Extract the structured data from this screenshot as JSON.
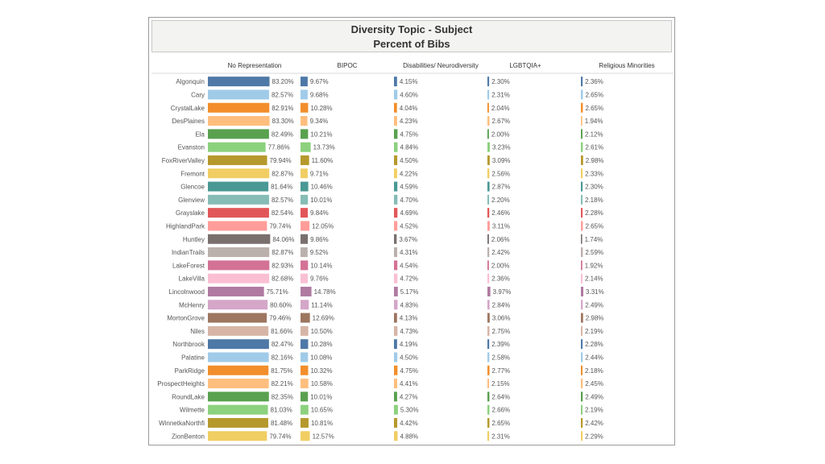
{
  "chart_data": {
    "type": "bar",
    "title": "Diversity Topic - Subject",
    "subtitle": "Percent of Bibs",
    "categories": [
      "Algonquin",
      "Cary",
      "CrystalLake",
      "DesPlaines",
      "Ela",
      "Evanston",
      "FoxRiverValley",
      "Fremont",
      "Glencoe",
      "Glenview",
      "Grayslake",
      "HighlandPark",
      "Huntley",
      "IndianTrails",
      "LakeForest",
      "LakeVilla",
      "Lincolnwood",
      "McHenry",
      "MortonGrove",
      "Niles",
      "Northbrook",
      "Palatine",
      "ParkRidge",
      "ProspectHeights",
      "RoundLake",
      "Wilmette",
      "WinnetkaNorthfi",
      "ZionBenton"
    ],
    "colors": [
      "#4e79a7",
      "#a0cbe8",
      "#f28e2b",
      "#ffbe7d",
      "#59a14f",
      "#8cd17d",
      "#b6992d",
      "#f1ce63",
      "#499894",
      "#86bcb6",
      "#e15759",
      "#ff9d9a",
      "#79706e",
      "#bab0ac",
      "#d37295",
      "#fabfd2",
      "#b07aa1",
      "#d4a6c8",
      "#9d7660",
      "#d7b5a6",
      "#4e79a7",
      "#a0cbe8",
      "#f28e2b",
      "#ffbe7d",
      "#59a14f",
      "#8cd17d",
      "#b6992d",
      "#f1ce63"
    ],
    "series": [
      {
        "name": "No Representation",
        "labels": [
          "83.20%",
          "82.57%",
          "82.91%",
          "83.30%",
          "82.49%",
          "77.86%",
          "79.94%",
          "82.87%",
          "81.64%",
          "82.57%",
          "82.54%",
          "79.74%",
          "84.06%",
          "82.87%",
          "82.93%",
          "82.68%",
          "75.71%",
          "80.60%",
          "79.46%",
          "81.66%",
          "82.47%",
          "82.16%",
          "81.75%",
          "82.21%",
          "82.35%",
          "81.03%",
          "81.48%",
          "79.74%"
        ],
        "values": [
          83.2,
          82.57,
          82.91,
          83.3,
          82.49,
          77.86,
          79.94,
          82.87,
          81.64,
          82.57,
          82.54,
          79.74,
          84.06,
          82.87,
          82.93,
          82.68,
          75.71,
          80.6,
          79.46,
          81.66,
          82.47,
          82.16,
          81.75,
          82.21,
          82.35,
          81.03,
          81.48,
          79.74
        ]
      },
      {
        "name": "BIPOC",
        "labels": [
          "9.67%",
          "9.68%",
          "10.28%",
          "9.34%",
          "10.21%",
          "13.73%",
          "11.60%",
          "9.71%",
          "10.46%",
          "10.01%",
          "9.84%",
          "12.05%",
          "9.86%",
          "9.52%",
          "10.14%",
          "9.76%",
          "14.78%",
          "11.14%",
          "12.69%",
          "10.50%",
          "10.28%",
          "10.08%",
          "10.32%",
          "10.58%",
          "10.01%",
          "10.65%",
          "10.81%",
          "12.57%"
        ],
        "values": [
          9.67,
          9.68,
          10.28,
          9.34,
          10.21,
          13.73,
          11.6,
          9.71,
          10.46,
          10.01,
          9.84,
          12.05,
          9.86,
          9.52,
          10.14,
          9.76,
          14.78,
          11.14,
          12.69,
          10.5,
          10.28,
          10.08,
          10.32,
          10.58,
          10.01,
          10.65,
          10.81,
          12.57
        ]
      },
      {
        "name": "Disabilities/ Neurodiversity",
        "labels": [
          "4.15%",
          "4.60%",
          "4.04%",
          "4.23%",
          "4.75%",
          "4.84%",
          "4.50%",
          "4.22%",
          "4.59%",
          "4.70%",
          "4.69%",
          "4.52%",
          "3.67%",
          "4.31%",
          "4.54%",
          "4.72%",
          "5.17%",
          "4.83%",
          "4.13%",
          "4.73%",
          "4.19%",
          "4.50%",
          "4.75%",
          "4.41%",
          "4.27%",
          "5.30%",
          "4.42%",
          "4.88%"
        ],
        "values": [
          4.15,
          4.6,
          4.04,
          4.23,
          4.75,
          4.84,
          4.5,
          4.22,
          4.59,
          4.7,
          4.69,
          4.52,
          3.67,
          4.31,
          4.54,
          4.72,
          5.17,
          4.83,
          4.13,
          4.73,
          4.19,
          4.5,
          4.75,
          4.41,
          4.27,
          5.3,
          4.42,
          4.88
        ]
      },
      {
        "name": "LGBTQIA+",
        "labels": [
          "2.30%",
          "2.31%",
          "2.04%",
          "2.67%",
          "2.00%",
          "3.23%",
          "3.09%",
          "2.56%",
          "2.87%",
          "2.20%",
          "2.46%",
          "3.11%",
          "2.06%",
          "2.42%",
          "2.00%",
          "2.36%",
          "3.97%",
          "2.84%",
          "3.06%",
          "2.75%",
          "2.39%",
          "2.58%",
          "2.77%",
          "2.15%",
          "2.64%",
          "2.66%",
          "2.65%",
          "2.31%"
        ],
        "values": [
          2.3,
          2.31,
          2.04,
          2.67,
          2.0,
          3.23,
          3.09,
          2.56,
          2.87,
          2.2,
          2.46,
          3.11,
          2.06,
          2.42,
          2.0,
          2.36,
          3.97,
          2.84,
          3.06,
          2.75,
          2.39,
          2.58,
          2.77,
          2.15,
          2.64,
          2.66,
          2.65,
          2.31
        ]
      },
      {
        "name": "Religious Minorities",
        "labels": [
          "2.36%",
          "2.65%",
          "2.65%",
          "1.94%",
          "2.12%",
          "2.61%",
          "2.98%",
          "2.33%",
          "2.30%",
          "2.18%",
          "2.28%",
          "2.65%",
          "1.74%",
          "2.59%",
          "1.92%",
          "2.14%",
          "3.31%",
          "2.49%",
          "2.98%",
          "2.19%",
          "2.28%",
          "2.44%",
          "2.18%",
          "2.45%",
          "2.49%",
          "2.19%",
          "2.42%",
          "2.29%"
        ],
        "values": [
          2.36,
          2.65,
          2.65,
          1.94,
          2.12,
          2.61,
          2.98,
          2.33,
          2.3,
          2.18,
          2.28,
          2.65,
          1.74,
          2.59,
          1.92,
          2.14,
          3.31,
          2.49,
          2.98,
          2.19,
          2.28,
          2.44,
          2.18,
          2.45,
          2.49,
          2.19,
          2.42,
          2.29
        ]
      }
    ]
  }
}
